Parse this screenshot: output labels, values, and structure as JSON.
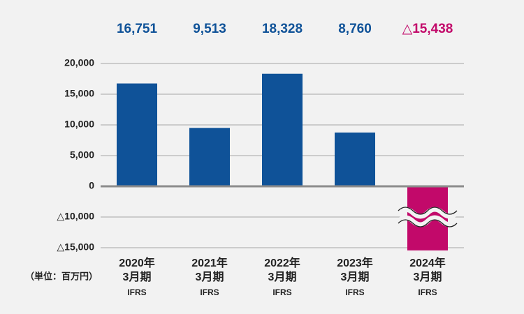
{
  "chart_data": {
    "type": "bar",
    "unit_label": "（単位：百万円）",
    "categories": [
      [
        "2020年",
        "3月期",
        "IFRS"
      ],
      [
        "2021年",
        "3月期",
        "IFRS"
      ],
      [
        "2022年",
        "3月期",
        "IFRS"
      ],
      [
        "2023年",
        "3月期",
        "IFRS"
      ],
      [
        "2024年",
        "3月期",
        "IFRS"
      ]
    ],
    "values": [
      16751,
      9513,
      18328,
      8760,
      -15438
    ],
    "value_labels": [
      "16,751",
      "9,513",
      "18,328",
      "8,760",
      "△15,438"
    ],
    "colors": [
      "#0f5298",
      "#0f5298",
      "#0f5298",
      "#0f5298",
      "#c2096a"
    ],
    "ylim": [
      -15000,
      20000
    ],
    "yticks": [
      {
        "value": -15000,
        "label": "△15,000"
      },
      {
        "value": -10000,
        "label": "△10,000"
      },
      {
        "value": 0,
        "label": "0"
      },
      {
        "value": 5000,
        "label": "5,000"
      },
      {
        "value": 10000,
        "label": "10,000"
      },
      {
        "value": 15000,
        "label": "15,000"
      },
      {
        "value": 20000,
        "label": "20,000"
      }
    ],
    "axis_break": true,
    "grid": true
  }
}
